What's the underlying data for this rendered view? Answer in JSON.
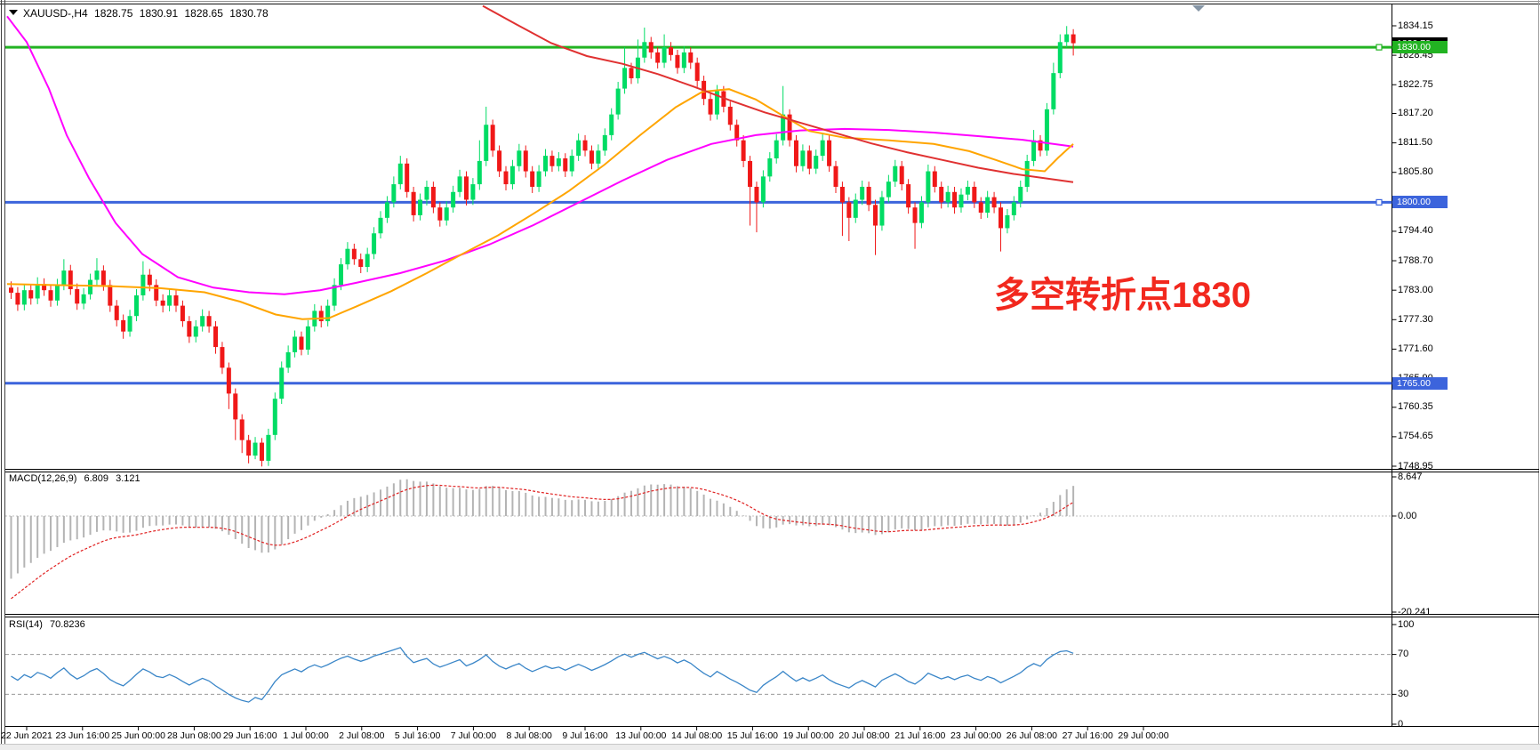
{
  "window": {
    "symbol_period": "XAUUSD-,H4",
    "open": "1828.75",
    "high": "1830.91",
    "low": "1828.65",
    "close": "1830.78",
    "current_price_label": "1830.78"
  },
  "annotation": {
    "text": "多空转折点1830",
    "color": "#f2281e"
  },
  "indicators": {
    "macd": {
      "label": "MACD(12,26,9)",
      "value1": "6.809",
      "value2": "3.121",
      "axis": [
        "8.647",
        "0.00",
        "-20.241"
      ]
    },
    "rsi": {
      "label": "RSI(14)",
      "value": "70.8236",
      "axis": [
        "100",
        "70",
        "30",
        "0"
      ],
      "levels": [
        70,
        30
      ]
    }
  },
  "price_axis": {
    "ticks": [
      "1834.15",
      "1828.45",
      "1822.75",
      "1817.20",
      "1811.50",
      "1805.80",
      "1800.00",
      "1794.40",
      "1788.70",
      "1783.00",
      "1777.30",
      "1771.60",
      "1765.90",
      "1760.35",
      "1754.65",
      "1748.95"
    ]
  },
  "hlines": [
    {
      "price": 1830.0,
      "label": "1830.00",
      "color": "#22b322"
    },
    {
      "price": 1800.0,
      "label": "1800.00",
      "color": "#3c64dc"
    },
    {
      "price": 1765.0,
      "label": "1765.00",
      "color": "#3c64dc"
    }
  ],
  "time_axis": {
    "labels": [
      "22 Jun 2021",
      "23 Jun 16:00",
      "25 Jun 00:00",
      "28 Jun 08:00",
      "29 Jun 16:00",
      "1 Jul 00:00",
      "2 Jul 08:00",
      "5 Jul 16:00",
      "7 Jul 00:00",
      "8 Jul 08:00",
      "9 Jul 16:00",
      "13 Jul 00:00",
      "14 Jul 08:00",
      "15 Jul 16:00",
      "19 Jul 00:00",
      "20 Jul 08:00",
      "21 Jul 16:00",
      "23 Jul 00:00",
      "26 Jul 08:00",
      "27 Jul 16:00",
      "29 Jul 00:00"
    ]
  },
  "chart_data": {
    "type": "candlestick",
    "symbol": "XAUUSD",
    "timeframe": "H4",
    "title": "XAUUSD-,H4 1828.75 1830.91 1828.65 1830.78",
    "ylim": [
      1748.95,
      1834.15
    ],
    "grid": false,
    "colors": {
      "bull": "#00dc64",
      "bear": "#f01818",
      "macd_hist": "#b4b4b4",
      "macd_signal": "#e02020",
      "rsi_line": "#3a86c8",
      "ma_fast": "#ff00ff",
      "ma_mid": "#ffa500",
      "ma_slow": "#e03131"
    },
    "candles_format": "high,low,close (open = previous close)",
    "first_open": 1783.5,
    "candles": [
      [
        1784.7,
        1781.3,
        1782.5
      ],
      [
        1783.6,
        1779.0,
        1780.2
      ],
      [
        1784.2,
        1779.1,
        1783.0
      ],
      [
        1784.1,
        1780.2,
        1781.4
      ],
      [
        1785.5,
        1780.3,
        1784.2
      ],
      [
        1785.3,
        1781.9,
        1783.0
      ],
      [
        1784.0,
        1779.8,
        1781.0
      ],
      [
        1785.2,
        1780.0,
        1784.0
      ],
      [
        1789.0,
        1783.0,
        1786.8
      ],
      [
        1787.9,
        1782.1,
        1783.2
      ],
      [
        1784.3,
        1779.2,
        1780.4
      ],
      [
        1783.4,
        1779.3,
        1782.2
      ],
      [
        1786.2,
        1781.2,
        1785.0
      ],
      [
        1789.2,
        1784.0,
        1786.8
      ],
      [
        1787.8,
        1782.9,
        1784.0
      ],
      [
        1785.0,
        1778.8,
        1780.0
      ],
      [
        1781.1,
        1776.0,
        1777.2
      ],
      [
        1778.3,
        1773.6,
        1775.0
      ],
      [
        1779.2,
        1774.0,
        1778.0
      ],
      [
        1783.2,
        1777.0,
        1782.0
      ],
      [
        1788.6,
        1781.0,
        1786.0
      ],
      [
        1787.1,
        1782.8,
        1784.0
      ],
      [
        1785.1,
        1779.9,
        1781.0
      ],
      [
        1782.2,
        1778.7,
        1780.0
      ],
      [
        1783.3,
        1778.9,
        1782.0
      ],
      [
        1783.0,
        1778.8,
        1780.0
      ],
      [
        1781.0,
        1775.9,
        1777.0
      ],
      [
        1778.0,
        1772.8,
        1774.0
      ],
      [
        1777.2,
        1772.9,
        1776.0
      ],
      [
        1779.3,
        1775.0,
        1778.0
      ],
      [
        1779.0,
        1774.8,
        1776.0
      ],
      [
        1777.0,
        1770.7,
        1772.0
      ],
      [
        1773.0,
        1766.8,
        1768.0
      ],
      [
        1769.0,
        1760.0,
        1763.0
      ],
      [
        1764.0,
        1754.0,
        1758.0
      ],
      [
        1759.0,
        1751.5,
        1754.0
      ],
      [
        1755.0,
        1749.5,
        1751.0
      ],
      [
        1754.6,
        1750.3,
        1753.5
      ],
      [
        1754.4,
        1748.9,
        1750.0
      ],
      [
        1756.2,
        1749.0,
        1755.0
      ],
      [
        1763.2,
        1754.0,
        1762.0
      ],
      [
        1769.2,
        1761.0,
        1768.0
      ],
      [
        1772.3,
        1767.0,
        1771.0
      ],
      [
        1775.2,
        1770.0,
        1774.0
      ],
      [
        1775.0,
        1770.4,
        1771.5
      ],
      [
        1777.2,
        1770.5,
        1776.0
      ],
      [
        1780.3,
        1775.0,
        1779.0
      ],
      [
        1780.0,
        1775.8,
        1777.0
      ],
      [
        1781.2,
        1776.0,
        1780.0
      ],
      [
        1785.3,
        1779.0,
        1784.0
      ],
      [
        1789.2,
        1783.0,
        1788.0
      ],
      [
        1792.3,
        1787.0,
        1791.0
      ],
      [
        1792.0,
        1787.9,
        1789.0
      ],
      [
        1790.1,
        1786.3,
        1787.5
      ],
      [
        1791.2,
        1786.5,
        1790.0
      ],
      [
        1795.2,
        1789.0,
        1794.0
      ],
      [
        1798.3,
        1793.0,
        1797.0
      ],
      [
        1801.2,
        1796.0,
        1800.0
      ],
      [
        1805.0,
        1799.0,
        1803.5
      ],
      [
        1809.0,
        1802.5,
        1807.5
      ],
      [
        1808.5,
        1800.9,
        1802.0
      ],
      [
        1803.0,
        1796.3,
        1797.5
      ],
      [
        1801.7,
        1796.5,
        1800.5
      ],
      [
        1804.2,
        1799.4,
        1803.0
      ],
      [
        1804.0,
        1797.9,
        1799.0
      ],
      [
        1800.0,
        1795.3,
        1796.5
      ],
      [
        1800.2,
        1795.5,
        1799.0
      ],
      [
        1803.2,
        1798.0,
        1802.0
      ],
      [
        1806.3,
        1801.0,
        1805.0
      ],
      [
        1806.0,
        1799.4,
        1800.5
      ],
      [
        1804.7,
        1799.5,
        1803.5
      ],
      [
        1812.0,
        1802.4,
        1808.0
      ],
      [
        1818.5,
        1807.0,
        1815.0
      ],
      [
        1816.0,
        1808.8,
        1810.0
      ],
      [
        1811.0,
        1804.9,
        1806.0
      ],
      [
        1807.0,
        1802.3,
        1803.5
      ],
      [
        1808.2,
        1802.5,
        1807.0
      ],
      [
        1811.3,
        1806.0,
        1810.0
      ],
      [
        1811.0,
        1804.8,
        1806.0
      ],
      [
        1807.0,
        1801.8,
        1803.0
      ],
      [
        1807.2,
        1802.0,
        1806.0
      ],
      [
        1810.3,
        1805.0,
        1809.0
      ],
      [
        1810.0,
        1805.9,
        1807.0
      ],
      [
        1809.7,
        1806.0,
        1808.5
      ],
      [
        1809.5,
        1804.9,
        1806.0
      ],
      [
        1810.2,
        1805.0,
        1809.0
      ],
      [
        1813.3,
        1808.0,
        1812.0
      ],
      [
        1813.0,
        1808.9,
        1810.0
      ],
      [
        1811.0,
        1806.4,
        1807.5
      ],
      [
        1811.2,
        1806.5,
        1810.0
      ],
      [
        1814.3,
        1809.0,
        1813.0
      ],
      [
        1818.2,
        1812.0,
        1817.0
      ],
      [
        1823.3,
        1816.0,
        1822.0
      ],
      [
        1830.0,
        1821.0,
        1826.0
      ],
      [
        1827.0,
        1822.9,
        1824.0
      ],
      [
        1831.5,
        1823.0,
        1828.0
      ],
      [
        1833.8,
        1827.0,
        1831.0
      ],
      [
        1832.0,
        1827.8,
        1829.0
      ],
      [
        1830.0,
        1825.9,
        1827.0
      ],
      [
        1832.5,
        1826.0,
        1830.0
      ],
      [
        1831.0,
        1827.4,
        1828.5
      ],
      [
        1829.5,
        1824.9,
        1826.0
      ],
      [
        1830.2,
        1825.0,
        1829.0
      ],
      [
        1830.0,
        1825.8,
        1827.0
      ],
      [
        1828.0,
        1822.3,
        1823.5
      ],
      [
        1824.5,
        1818.8,
        1820.0
      ],
      [
        1821.0,
        1815.8,
        1817.0
      ],
      [
        1822.7,
        1816.0,
        1821.5
      ],
      [
        1822.5,
        1817.4,
        1818.5
      ],
      [
        1819.5,
        1813.9,
        1815.0
      ],
      [
        1816.0,
        1810.8,
        1812.0
      ],
      [
        1813.0,
        1806.8,
        1808.0
      ],
      [
        1809.0,
        1795.5,
        1803.0
      ],
      [
        1804.0,
        1794.2,
        1800.0
      ],
      [
        1806.2,
        1799.0,
        1805.0
      ],
      [
        1809.7,
        1804.0,
        1808.5
      ],
      [
        1813.2,
        1807.5,
        1812.0
      ],
      [
        1822.5,
        1811.0,
        1817.0
      ],
      [
        1818.0,
        1810.8,
        1812.0
      ],
      [
        1813.0,
        1805.8,
        1807.0
      ],
      [
        1811.2,
        1806.0,
        1810.0
      ],
      [
        1811.0,
        1805.4,
        1806.5
      ],
      [
        1810.2,
        1805.5,
        1809.0
      ],
      [
        1813.2,
        1808.0,
        1812.0
      ],
      [
        1813.0,
        1805.9,
        1807.0
      ],
      [
        1808.0,
        1801.8,
        1803.0
      ],
      [
        1804.0,
        1793.5,
        1800.0
      ],
      [
        1801.0,
        1792.5,
        1797.0
      ],
      [
        1801.7,
        1796.0,
        1800.5
      ],
      [
        1804.2,
        1799.5,
        1803.0
      ],
      [
        1804.0,
        1798.3,
        1799.5
      ],
      [
        1800.5,
        1789.8,
        1795.5
      ],
      [
        1802.2,
        1794.5,
        1801.0
      ],
      [
        1805.3,
        1800.0,
        1804.0
      ],
      [
        1808.2,
        1803.0,
        1807.0
      ],
      [
        1808.0,
        1802.3,
        1803.5
      ],
      [
        1804.5,
        1797.8,
        1799.0
      ],
      [
        1800.0,
        1791.0,
        1796.0
      ],
      [
        1801.2,
        1795.0,
        1800.0
      ],
      [
        1807.3,
        1799.0,
        1806.0
      ],
      [
        1807.0,
        1801.9,
        1803.0
      ],
      [
        1804.0,
        1798.8,
        1800.0
      ],
      [
        1803.2,
        1799.0,
        1802.0
      ],
      [
        1803.0,
        1797.8,
        1799.0
      ],
      [
        1802.7,
        1798.0,
        1801.5
      ],
      [
        1804.2,
        1800.4,
        1803.0
      ],
      [
        1804.0,
        1798.9,
        1800.0
      ],
      [
        1801.0,
        1796.8,
        1798.0
      ],
      [
        1802.2,
        1797.0,
        1801.0
      ],
      [
        1802.0,
        1797.9,
        1799.0
      ],
      [
        1800.0,
        1790.5,
        1795.0
      ],
      [
        1798.7,
        1794.0,
        1797.5
      ],
      [
        1801.2,
        1796.5,
        1800.0
      ],
      [
        1804.2,
        1799.0,
        1803.0
      ],
      [
        1809.2,
        1802.0,
        1808.0
      ],
      [
        1814.0,
        1807.0,
        1812.0
      ],
      [
        1813.0,
        1808.9,
        1810.0
      ],
      [
        1819.2,
        1809.0,
        1818.0
      ],
      [
        1827.0,
        1817.0,
        1825.0
      ],
      [
        1832.5,
        1824.0,
        1831.0
      ],
      [
        1834.1,
        1830.0,
        1832.5
      ],
      [
        1833.5,
        1828.4,
        1830.78
      ]
    ],
    "ma_lines": [
      {
        "name": "ma-fast-magenta",
        "color": "#ff00ff",
        "points": [
          [
            8,
            1836
          ],
          [
            30,
            1831
          ],
          [
            55,
            1822
          ],
          [
            75,
            1813
          ],
          [
            100,
            1804.7
          ],
          [
            130,
            1796
          ],
          [
            160,
            1790
          ],
          [
            200,
            1785.5
          ],
          [
            240,
            1783.5
          ],
          [
            280,
            1782.6
          ],
          [
            320,
            1782.2
          ],
          [
            360,
            1783.0
          ],
          [
            400,
            1784.4
          ],
          [
            450,
            1786.3
          ],
          [
            500,
            1788.7
          ],
          [
            550,
            1791.8
          ],
          [
            600,
            1795.6
          ],
          [
            650,
            1799.9
          ],
          [
            700,
            1804.2
          ],
          [
            750,
            1808.2
          ],
          [
            800,
            1811.3
          ],
          [
            850,
            1813.0
          ],
          [
            900,
            1813.9
          ],
          [
            950,
            1814.2
          ],
          [
            1000,
            1814.0
          ],
          [
            1050,
            1813.5
          ],
          [
            1100,
            1812.8
          ],
          [
            1150,
            1812.1
          ],
          [
            1207,
            1810.8
          ]
        ]
      },
      {
        "name": "ma-mid-orange",
        "color": "#ffa500",
        "points": [
          [
            8,
            1784.2
          ],
          [
            60,
            1784.0
          ],
          [
            120,
            1783.8
          ],
          [
            180,
            1783.4
          ],
          [
            230,
            1782.6
          ],
          [
            270,
            1780.8
          ],
          [
            310,
            1778.3
          ],
          [
            340,
            1777.4
          ],
          [
            370,
            1777.6
          ],
          [
            400,
            1779.8
          ],
          [
            440,
            1782.8
          ],
          [
            480,
            1786.3
          ],
          [
            520,
            1790.0
          ],
          [
            560,
            1793.6
          ],
          [
            600,
            1797.8
          ],
          [
            640,
            1802.2
          ],
          [
            680,
            1807.3
          ],
          [
            720,
            1813.0
          ],
          [
            760,
            1818.4
          ],
          [
            790,
            1821.4
          ],
          [
            820,
            1821.9
          ],
          [
            850,
            1819.9
          ],
          [
            880,
            1816.8
          ],
          [
            910,
            1813.8
          ],
          [
            950,
            1812.5
          ],
          [
            1000,
            1812.0
          ],
          [
            1050,
            1811.3
          ],
          [
            1090,
            1809.9
          ],
          [
            1120,
            1808.2
          ],
          [
            1150,
            1806.4
          ],
          [
            1175,
            1806.0
          ],
          [
            1190,
            1808.6
          ],
          [
            1207,
            1811.3
          ]
        ]
      },
      {
        "name": "ma-slow-red",
        "color": "#e03131",
        "points": [
          [
            543,
            1838
          ],
          [
            580,
            1834.5
          ],
          [
            620,
            1830.8
          ],
          [
            660,
            1828.3
          ],
          [
            700,
            1826.8
          ],
          [
            740,
            1824.8
          ],
          [
            780,
            1822.4
          ],
          [
            820,
            1819.8
          ],
          [
            860,
            1817.4
          ],
          [
            900,
            1815.4
          ],
          [
            940,
            1813.4
          ],
          [
            980,
            1811.4
          ],
          [
            1020,
            1809.7
          ],
          [
            1060,
            1808.2
          ],
          [
            1100,
            1806.7
          ],
          [
            1140,
            1805.5
          ],
          [
            1207,
            1803.9
          ]
        ]
      }
    ],
    "macd_seed": {
      "ema12": 1777.5,
      "ema26": 1793.0,
      "signal": -19.5
    },
    "rsi_seed": {
      "avg_gain": 1.0,
      "avg_loss": 1.0
    },
    "macd_ylim": [
      -20.241,
      8.647
    ],
    "rsi_ylim": [
      0,
      100
    ]
  }
}
